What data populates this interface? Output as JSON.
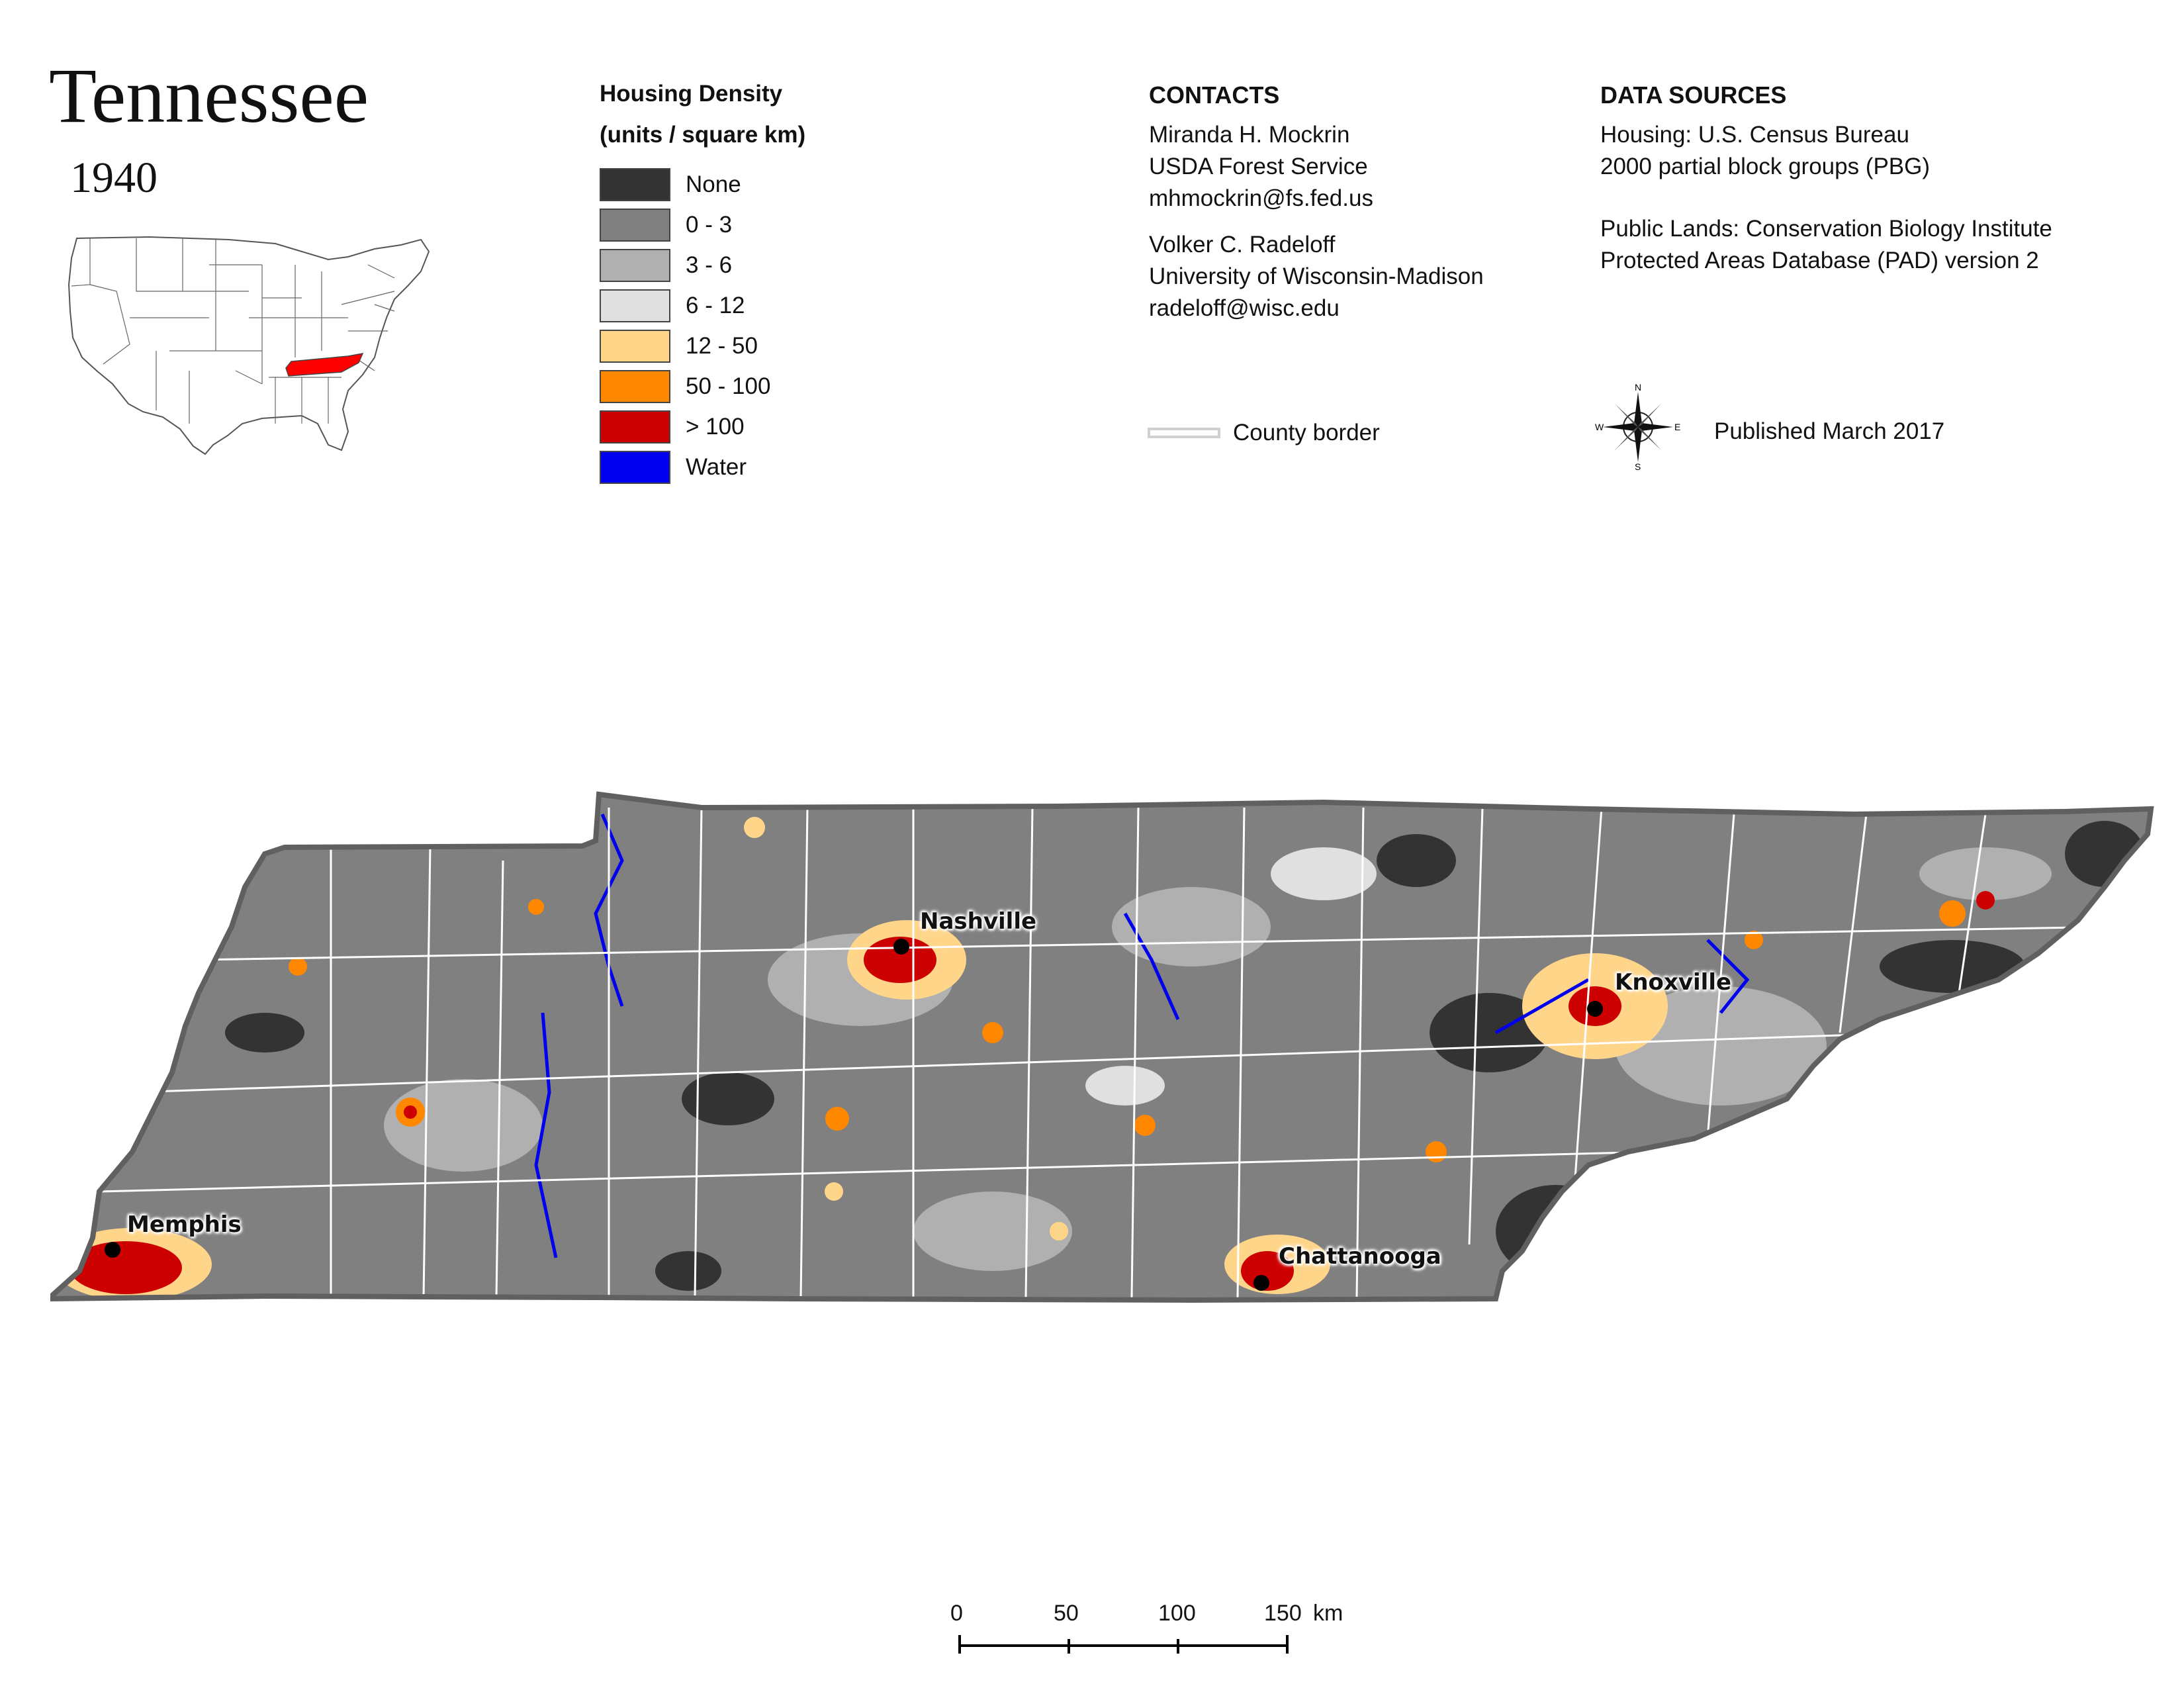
{
  "title": "Tennessee",
  "year": "1940",
  "legend": {
    "heading_line1": "Housing Density",
    "heading_line2": "(units / square km)",
    "items": [
      {
        "label": "None",
        "color": "#333333"
      },
      {
        "label": "0 - 3",
        "color": "#808080"
      },
      {
        "label": "3 - 6",
        "color": "#b0b0b0"
      },
      {
        "label": "6 - 12",
        "color": "#e0e0e0"
      },
      {
        "label": "12 - 50",
        "color": "#ffd58a"
      },
      {
        "label": "50 - 100",
        "color": "#ff8800"
      },
      {
        "label": "> 100",
        "color": "#cc0000"
      },
      {
        "label": "Water",
        "color": "#0000ee"
      }
    ]
  },
  "contacts": {
    "heading": "CONTACTS",
    "person1": [
      "Miranda H. Mockrin",
      "USDA Forest Service",
      "mhmockrin@fs.fed.us"
    ],
    "person2": [
      "Volker C. Radeloff",
      "University of Wisconsin-Madison",
      "radeloff@wisc.edu"
    ]
  },
  "data_sources": {
    "heading": "DATA SOURCES",
    "housing": [
      "Housing: U.S. Census Bureau",
      "2000 partial block groups (PBG)"
    ],
    "public_lands": [
      "Public Lands: Conservation Biology Institute",
      "Protected Areas Database (PAD) version 2"
    ]
  },
  "county_border_label": "County border",
  "compass": {
    "n": "N",
    "s": "S",
    "e": "E",
    "w": "W"
  },
  "published": "Published March 2017",
  "cities": {
    "nashville": "Nashville",
    "knoxville": "Knoxville",
    "memphis": "Memphis",
    "chattanooga": "Chattanooga"
  },
  "scale_bar": {
    "ticks": [
      "0",
      "50",
      "100",
      "150"
    ],
    "unit": "km"
  },
  "colors": {
    "state_border": "#606060",
    "county_border": "#ffffff",
    "highlight_state": "#ff0000"
  }
}
